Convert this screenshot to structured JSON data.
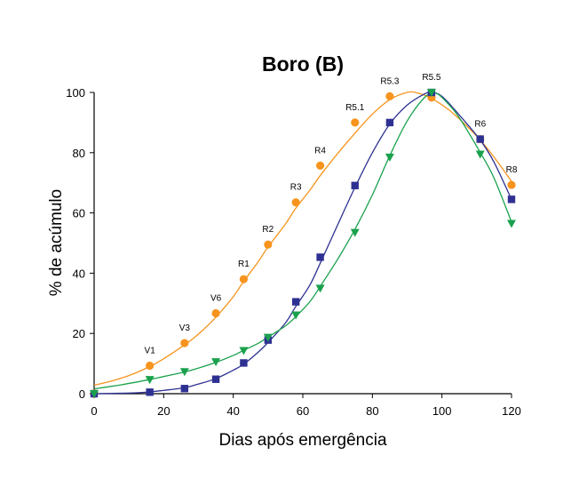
{
  "chart_data": {
    "type": "line",
    "title": "Boro (B)",
    "xlabel": "Dias após emergência",
    "ylabel": "% de acúmulo",
    "xlim": [
      0,
      120
    ],
    "ylim": [
      0,
      100
    ],
    "xticks": [
      0,
      20,
      40,
      60,
      80,
      100,
      120
    ],
    "yticks": [
      0,
      20,
      40,
      60,
      80,
      100
    ],
    "grid": false,
    "legend": "none",
    "series": [
      {
        "marker": "circle",
        "color": "#F7941D",
        "points": [
          [
            0,
            0
          ],
          [
            16,
            9.3
          ],
          [
            26,
            16.8
          ],
          [
            35,
            26.7
          ],
          [
            43,
            38
          ],
          [
            50,
            49.5
          ],
          [
            58,
            63.5
          ],
          [
            65,
            75.7
          ],
          [
            75,
            90
          ],
          [
            85,
            98.7
          ],
          [
            97,
            98.3
          ],
          [
            111,
            84.5
          ],
          [
            120,
            69.3
          ]
        ],
        "curve": [
          [
            0,
            2.8
          ],
          [
            5,
            4.2
          ],
          [
            10,
            6.0
          ],
          [
            16,
            9.0
          ],
          [
            20,
            11.6
          ],
          [
            26,
            16.2
          ],
          [
            30,
            19.8
          ],
          [
            35,
            25.4
          ],
          [
            40,
            32.2
          ],
          [
            43,
            37.3
          ],
          [
            47,
            43.5
          ],
          [
            50,
            48.7
          ],
          [
            55,
            56.3
          ],
          [
            58,
            61.6
          ],
          [
            62,
            67.5
          ],
          [
            65,
            72.4
          ],
          [
            70,
            79.7
          ],
          [
            75,
            86.5
          ],
          [
            80,
            92.8
          ],
          [
            85,
            97.6
          ],
          [
            90,
            100
          ],
          [
            93,
            99.8
          ],
          [
            97,
            98.0
          ],
          [
            102,
            94.2
          ],
          [
            107,
            89.0
          ],
          [
            111,
            84.2
          ],
          [
            115,
            78.5
          ],
          [
            120,
            70.5
          ]
        ]
      },
      {
        "marker": "square",
        "color": "#2E3192",
        "points": [
          [
            0,
            0
          ],
          [
            16,
            0.5
          ],
          [
            26,
            1.7
          ],
          [
            35,
            4.8
          ],
          [
            43,
            10.2
          ],
          [
            50,
            17.8
          ],
          [
            58,
            30.5
          ],
          [
            65,
            45.3
          ],
          [
            75,
            69.1
          ],
          [
            85,
            90
          ],
          [
            97,
            100
          ],
          [
            111,
            84.5
          ],
          [
            120,
            64.5
          ]
        ],
        "curve": [
          [
            0,
            0
          ],
          [
            10,
            0.2
          ],
          [
            16,
            0.6
          ],
          [
            20,
            1.1
          ],
          [
            26,
            2.0
          ],
          [
            30,
            3.2
          ],
          [
            35,
            5.0
          ],
          [
            40,
            7.8
          ],
          [
            43,
            9.8
          ],
          [
            47,
            13.6
          ],
          [
            50,
            17.0
          ],
          [
            55,
            23.5
          ],
          [
            58,
            29.0
          ],
          [
            62,
            36.0
          ],
          [
            65,
            43.3
          ],
          [
            70,
            56.0
          ],
          [
            75,
            68.5
          ],
          [
            80,
            80.0
          ],
          [
            85,
            89.5
          ],
          [
            90,
            95.8
          ],
          [
            95,
            99.5
          ],
          [
            97,
            100
          ],
          [
            100,
            98.7
          ],
          [
            105,
            92.5
          ],
          [
            111,
            84.2
          ],
          [
            115,
            76.8
          ],
          [
            120,
            64.5
          ]
        ]
      },
      {
        "marker": "triangle-down",
        "color": "#1AA14D",
        "points": [
          [
            0,
            0
          ],
          [
            16,
            4.7
          ],
          [
            26,
            7.3
          ],
          [
            35,
            10.6
          ],
          [
            43,
            14.3
          ],
          [
            50,
            18.7
          ],
          [
            58,
            26.1
          ],
          [
            65,
            35
          ],
          [
            75,
            53.5
          ],
          [
            85,
            78.5
          ],
          [
            97,
            100
          ],
          [
            111,
            79.5
          ],
          [
            120,
            56.5
          ]
        ],
        "curve": [
          [
            0,
            1.6
          ],
          [
            8,
            3.0
          ],
          [
            16,
            4.7
          ],
          [
            20,
            5.7
          ],
          [
            26,
            7.2
          ],
          [
            30,
            8.5
          ],
          [
            35,
            10.4
          ],
          [
            40,
            12.7
          ],
          [
            43,
            14.4
          ],
          [
            47,
            16.6
          ],
          [
            50,
            18.8
          ],
          [
            55,
            22.5
          ],
          [
            58,
            25.6
          ],
          [
            62,
            30.5
          ],
          [
            65,
            35.6
          ],
          [
            70,
            44.6
          ],
          [
            75,
            54.6
          ],
          [
            80,
            66.0
          ],
          [
            85,
            79.0
          ],
          [
            90,
            90.5
          ],
          [
            95,
            98.3
          ],
          [
            98,
            99.8
          ],
          [
            101,
            97.2
          ],
          [
            105,
            91.6
          ],
          [
            111,
            80.1
          ],
          [
            115,
            71.5
          ],
          [
            120,
            57.0
          ]
        ]
      }
    ],
    "annotations": [
      {
        "text": "V1",
        "x": 16,
        "y": 9.3
      },
      {
        "text": "V3",
        "x": 26,
        "y": 16.8
      },
      {
        "text": "V6",
        "x": 35,
        "y": 26.7
      },
      {
        "text": "R1",
        "x": 43,
        "y": 38
      },
      {
        "text": "R2",
        "x": 50,
        "y": 49.5
      },
      {
        "text": "R3",
        "x": 58,
        "y": 63.5
      },
      {
        "text": "R4",
        "x": 65,
        "y": 75.7
      },
      {
        "text": "R5.1",
        "x": 75,
        "y": 90
      },
      {
        "text": "R5.3",
        "x": 85,
        "y": 98.7
      },
      {
        "text": "R5.5",
        "x": 97,
        "y": 100
      },
      {
        "text": "R6",
        "x": 111,
        "y": 84.5
      },
      {
        "text": "R8",
        "x": 120,
        "y": 69.3
      }
    ]
  }
}
